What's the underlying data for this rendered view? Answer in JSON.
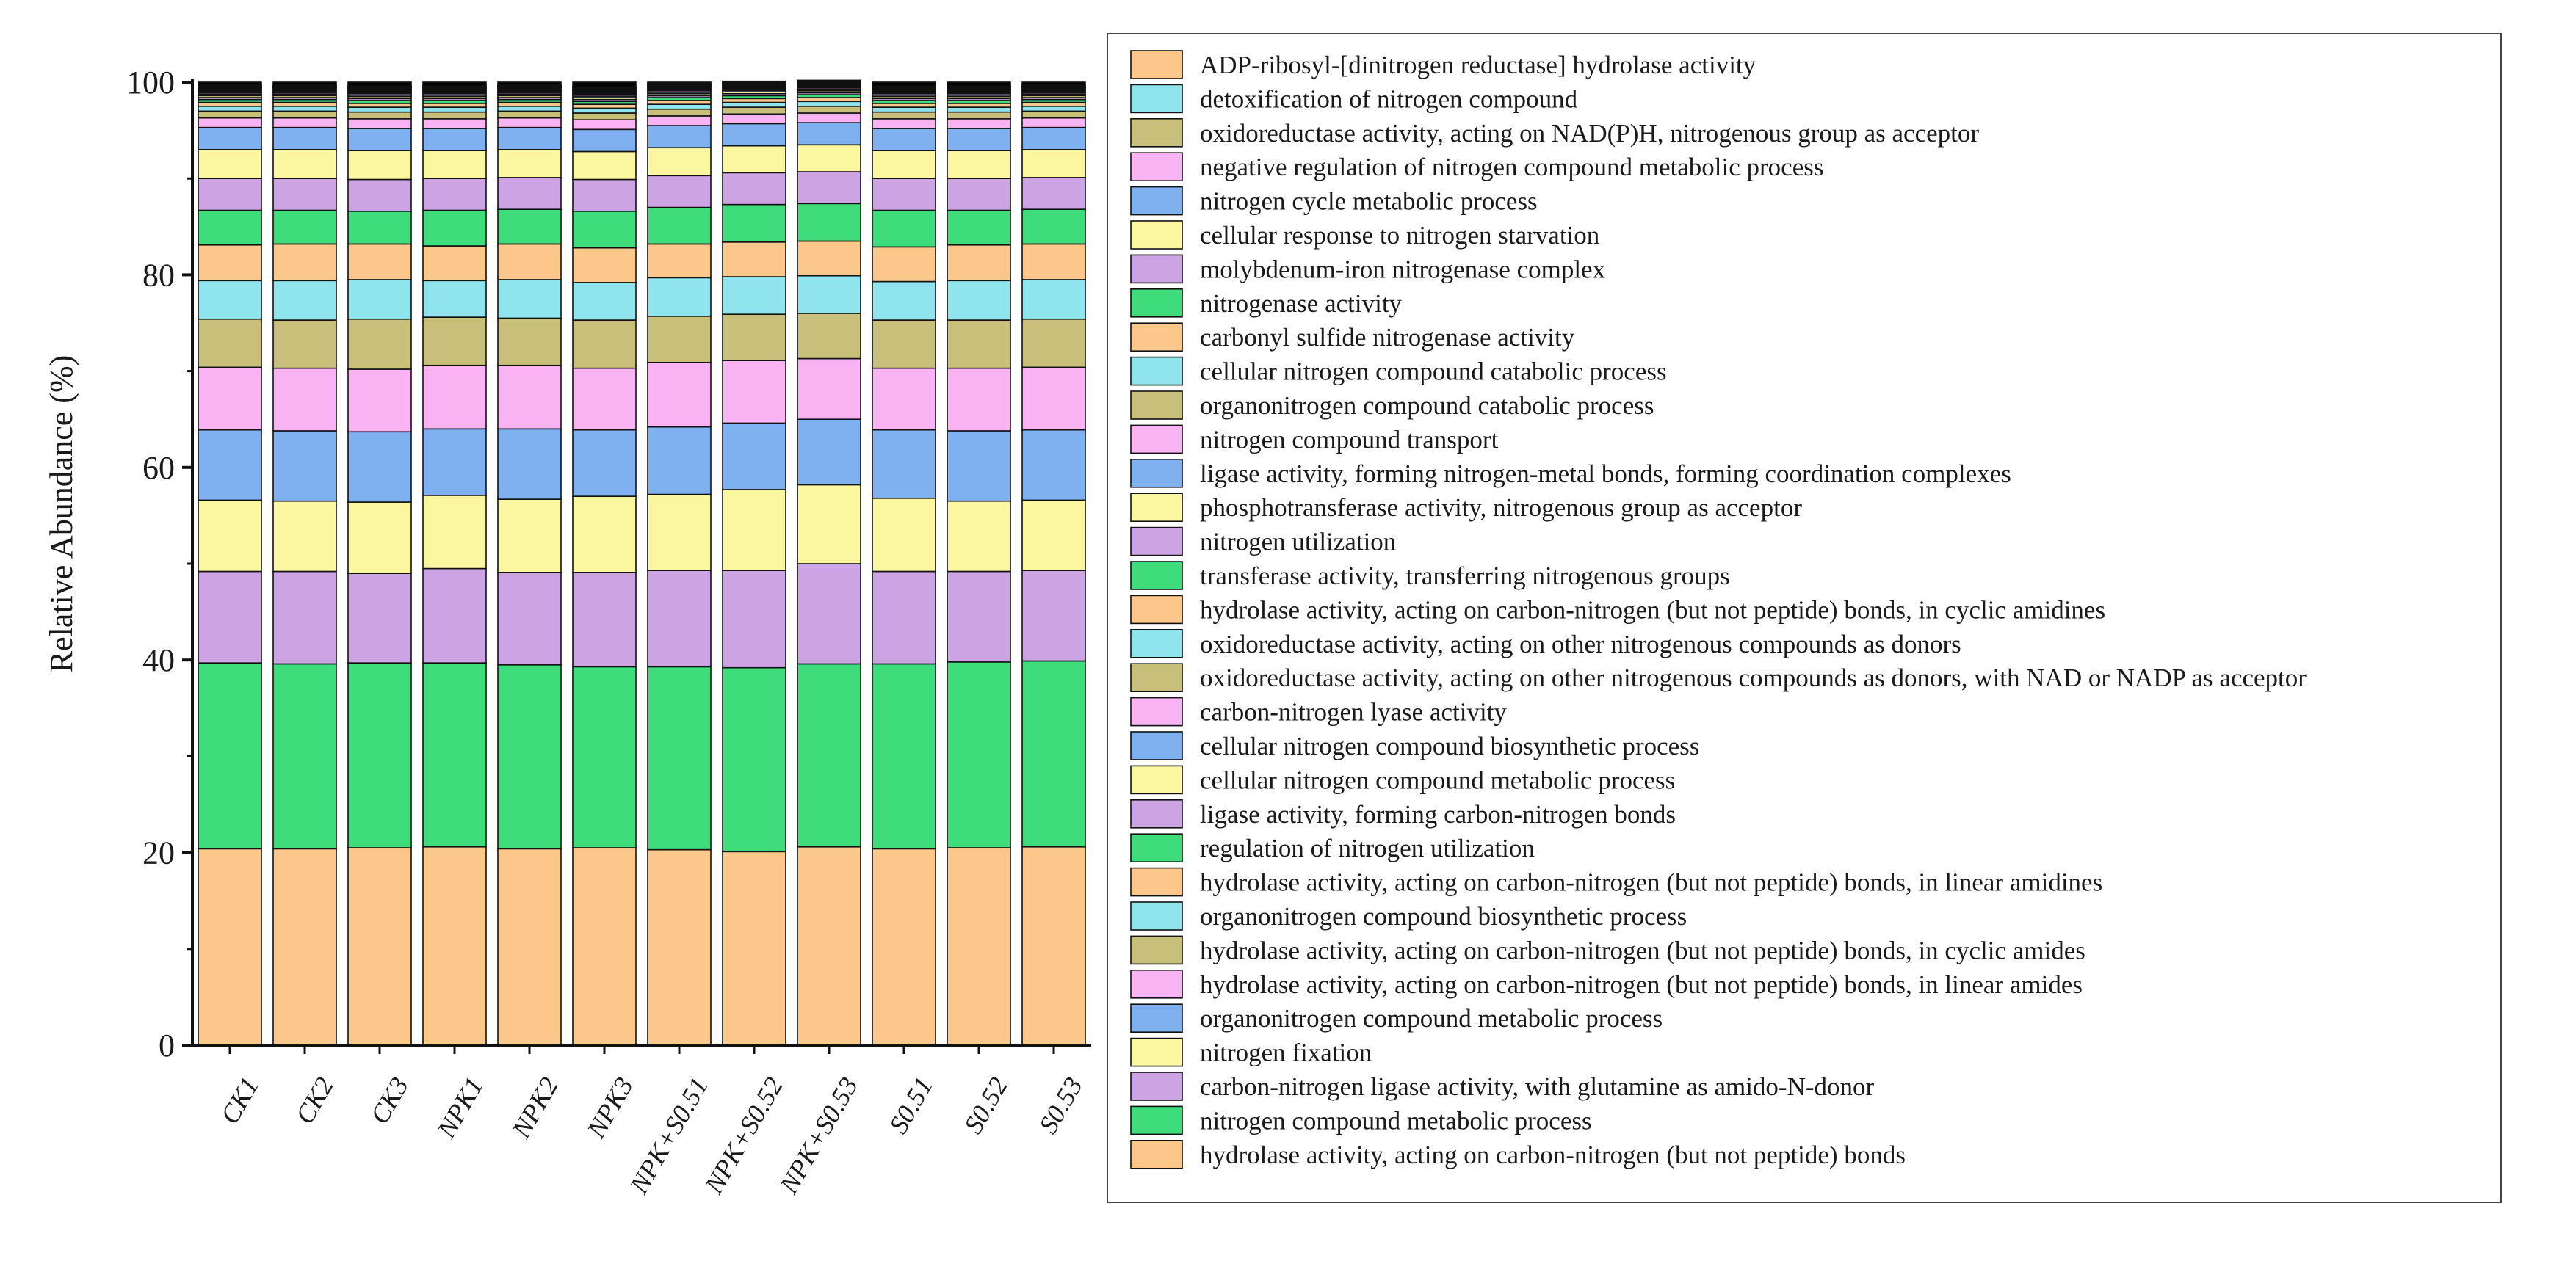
{
  "colors": {
    "orange": "#FBC78A",
    "green": "#3FDC7B",
    "purple": "#CDA4E3",
    "yellow": "#FBF6A0",
    "blue": "#7FB1F0",
    "pink": "#F9B2F2",
    "olive": "#C8C07A",
    "cyan": "#8FE4EE",
    "black": "#000000"
  },
  "chart_data": {
    "type": "bar",
    "stacked": true,
    "title": "",
    "xlabel": "",
    "ylabel": "Relative Abundance (%)",
    "ylim": [
      0,
      100
    ],
    "yticks": [
      0,
      20,
      40,
      60,
      80,
      100
    ],
    "legend_position": "right",
    "categories": [
      "CK1",
      "CK2",
      "CK3",
      "NPK1",
      "NPK2",
      "NPK3",
      "NPK+S0.51",
      "NPK+S0.52",
      "NPK+S0.53",
      "S0.51",
      "S0.52",
      "S0.53"
    ],
    "series": [
      {
        "name": "hydrolase activity, acting on carbon-nitrogen (but not peptide) bonds",
        "color": "orange",
        "values": [
          20.4,
          20.4,
          20.5,
          20.6,
          20.4,
          20.5,
          20.3,
          20.1,
          20.6,
          20.4,
          20.5,
          20.6
        ]
      },
      {
        "name": "nitrogen compound metabolic process",
        "color": "green",
        "values": [
          19.3,
          19.2,
          19.2,
          19.1,
          19.1,
          18.8,
          19.0,
          19.1,
          19.0,
          19.2,
          19.3,
          19.3
        ]
      },
      {
        "name": "carbon-nitrogen ligase activity, with glutamine as amido-N-donor",
        "color": "purple",
        "values": [
          9.5,
          9.6,
          9.3,
          9.8,
          9.6,
          9.8,
          10.0,
          10.1,
          10.4,
          9.6,
          9.4,
          9.4
        ]
      },
      {
        "name": "nitrogen fixation",
        "color": "yellow",
        "values": [
          7.4,
          7.3,
          7.4,
          7.6,
          7.6,
          7.9,
          7.9,
          8.4,
          8.2,
          7.6,
          7.3,
          7.3
        ]
      },
      {
        "name": "organonitrogen compound metabolic process",
        "color": "blue",
        "values": [
          7.3,
          7.3,
          7.3,
          6.9,
          7.3,
          6.9,
          7.0,
          6.9,
          6.8,
          7.1,
          7.3,
          7.3
        ]
      },
      {
        "name": "hydrolase activity, acting on carbon-nitrogen (but not peptide) bonds, in linear amides",
        "color": "pink",
        "values": [
          6.5,
          6.5,
          6.5,
          6.6,
          6.6,
          6.4,
          6.7,
          6.5,
          6.3,
          6.4,
          6.5,
          6.5
        ]
      },
      {
        "name": "hydrolase activity, acting on carbon-nitrogen (but not peptide) bonds, in cyclic amides",
        "color": "olive",
        "values": [
          5.0,
          5.0,
          5.2,
          5.0,
          4.9,
          5.0,
          4.8,
          4.8,
          4.7,
          5.0,
          5.0,
          5.0
        ]
      },
      {
        "name": "organonitrogen compound biosynthetic process",
        "color": "cyan",
        "values": [
          4.0,
          4.1,
          4.1,
          3.8,
          4.0,
          3.9,
          4.0,
          3.9,
          3.9,
          4.0,
          4.1,
          4.1
        ]
      },
      {
        "name": "hydrolase activity, acting on carbon-nitrogen (but not peptide) bonds, in linear amidines",
        "color": "orange",
        "values": [
          3.7,
          3.8,
          3.7,
          3.6,
          3.7,
          3.6,
          3.5,
          3.6,
          3.6,
          3.6,
          3.7,
          3.7
        ]
      },
      {
        "name": "regulation of nitrogen utilization",
        "color": "green",
        "values": [
          3.6,
          3.5,
          3.4,
          3.7,
          3.6,
          3.8,
          3.8,
          3.9,
          3.9,
          3.8,
          3.6,
          3.6
        ]
      },
      {
        "name": "ligase activity, forming carbon-nitrogen bonds",
        "color": "purple",
        "values": [
          3.3,
          3.3,
          3.3,
          3.3,
          3.3,
          3.3,
          3.3,
          3.3,
          3.3,
          3.3,
          3.3,
          3.3
        ]
      },
      {
        "name": "cellular nitrogen compound metabolic process",
        "color": "yellow",
        "values": [
          3.0,
          3.0,
          3.0,
          2.9,
          2.9,
          2.9,
          2.9,
          2.8,
          2.8,
          2.9,
          2.9,
          2.9
        ]
      },
      {
        "name": "cellular nitrogen compound biosynthetic process",
        "color": "blue",
        "values": [
          2.3,
          2.3,
          2.3,
          2.3,
          2.3,
          2.3,
          2.3,
          2.3,
          2.3,
          2.3,
          2.3,
          2.3
        ]
      },
      {
        "name": "carbon-nitrogen lyase activity",
        "color": "pink",
        "values": [
          1.0,
          1.0,
          1.0,
          1.0,
          1.0,
          1.0,
          1.0,
          1.0,
          1.0,
          1.0,
          1.0,
          1.0
        ]
      },
      {
        "name": "oxidoreductase activity, acting on other nitrogenous compounds as donors, with NAD or NADP as acceptor",
        "color": "olive",
        "values": [
          0.7,
          0.7,
          0.7,
          0.7,
          0.7,
          0.7,
          0.7,
          0.7,
          0.7,
          0.7,
          0.7,
          0.7
        ]
      },
      {
        "name": "oxidoreductase activity, acting on other nitrogenous compounds as donors",
        "color": "cyan",
        "values": [
          0.5,
          0.5,
          0.5,
          0.5,
          0.5,
          0.5,
          0.5,
          0.5,
          0.5,
          0.5,
          0.5,
          0.5
        ]
      },
      {
        "name": "hydrolase activity, acting on carbon-nitrogen (but not peptide) bonds, in cyclic amidines",
        "color": "orange",
        "values": [
          0.4,
          0.4,
          0.4,
          0.4,
          0.4,
          0.4,
          0.4,
          0.4,
          0.4,
          0.4,
          0.4,
          0.4
        ]
      },
      {
        "name": "transferase activity, transferring nitrogenous groups",
        "color": "green",
        "values": [
          0.3,
          0.3,
          0.3,
          0.3,
          0.3,
          0.3,
          0.3,
          0.3,
          0.3,
          0.3,
          0.3,
          0.3
        ]
      },
      {
        "name": "nitrogen utilization",
        "color": "purple",
        "values": [
          0.2,
          0.2,
          0.2,
          0.2,
          0.2,
          0.2,
          0.2,
          0.2,
          0.2,
          0.2,
          0.2,
          0.2
        ]
      },
      {
        "name": "phosphotransferase activity, nitrogenous group as acceptor",
        "color": "yellow",
        "values": [
          0.2,
          0.2,
          0.2,
          0.2,
          0.2,
          0.2,
          0.2,
          0.2,
          0.2,
          0.2,
          0.2,
          0.2
        ]
      },
      {
        "name": "ligase activity, forming nitrogen-metal bonds, forming coordination complexes",
        "color": "blue",
        "values": [
          0.15,
          0.15,
          0.15,
          0.15,
          0.15,
          0.15,
          0.15,
          0.15,
          0.15,
          0.15,
          0.15,
          0.15
        ]
      },
      {
        "name": "nitrogen compound transport",
        "color": "pink",
        "values": [
          0.15,
          0.15,
          0.15,
          0.15,
          0.15,
          0.15,
          0.15,
          0.15,
          0.15,
          0.15,
          0.15,
          0.15
        ]
      },
      {
        "name": "organonitrogen compound catabolic process",
        "color": "olive",
        "values": [
          0.1,
          0.1,
          0.1,
          0.1,
          0.1,
          0.1,
          0.1,
          0.1,
          0.1,
          0.1,
          0.1,
          0.1
        ]
      },
      {
        "name": "cellular nitrogen compound catabolic process",
        "color": "cyan",
        "values": [
          0.1,
          0.1,
          0.1,
          0.1,
          0.1,
          0.1,
          0.1,
          0.1,
          0.1,
          0.1,
          0.1,
          0.1
        ]
      },
      {
        "name": "carbonyl sulfide nitrogenase activity",
        "color": "orange",
        "values": [
          0.1,
          0.1,
          0.1,
          0.1,
          0.1,
          0.1,
          0.1,
          0.1,
          0.1,
          0.1,
          0.1,
          0.1
        ]
      },
      {
        "name": "nitrogenase activity",
        "color": "green",
        "values": [
          0.1,
          0.1,
          0.1,
          0.1,
          0.1,
          0.1,
          0.1,
          0.1,
          0.1,
          0.1,
          0.1,
          0.1
        ]
      },
      {
        "name": "molybdenum-iron nitrogenase complex",
        "color": "purple",
        "values": [
          0.1,
          0.1,
          0.1,
          0.1,
          0.1,
          0.1,
          0.1,
          0.1,
          0.1,
          0.1,
          0.1,
          0.1
        ]
      },
      {
        "name": "cellular response to nitrogen starvation",
        "color": "yellow",
        "values": [
          0.05,
          0.05,
          0.05,
          0.05,
          0.05,
          0.05,
          0.05,
          0.05,
          0.05,
          0.05,
          0.05,
          0.05
        ]
      },
      {
        "name": "nitrogen cycle metabolic process",
        "color": "blue",
        "values": [
          0.05,
          0.05,
          0.05,
          0.05,
          0.05,
          0.05,
          0.05,
          0.05,
          0.05,
          0.05,
          0.05,
          0.05
        ]
      },
      {
        "name": "negative regulation of nitrogen compound metabolic process",
        "color": "pink",
        "values": [
          0.05,
          0.05,
          0.05,
          0.05,
          0.05,
          0.05,
          0.05,
          0.05,
          0.05,
          0.05,
          0.05,
          0.05
        ]
      },
      {
        "name": "oxidoreductase activity, acting on NAD(P)H, nitrogenous group as acceptor",
        "color": "olive",
        "values": [
          0.05,
          0.05,
          0.05,
          0.05,
          0.05,
          0.05,
          0.05,
          0.05,
          0.05,
          0.05,
          0.05,
          0.05
        ]
      },
      {
        "name": "detoxification of nitrogen compound",
        "color": "cyan",
        "values": [
          0.05,
          0.05,
          0.05,
          0.05,
          0.05,
          0.05,
          0.05,
          0.05,
          0.05,
          0.05,
          0.05,
          0.05
        ]
      },
      {
        "name": "ADP-ribosyl-[dinitrogen reductase] hydrolase activity",
        "color": "orange",
        "values": [
          0.05,
          0.05,
          0.05,
          0.05,
          0.05,
          0.05,
          0.05,
          0.05,
          0.05,
          0.05,
          0.05,
          0.05
        ]
      }
    ],
    "remainder_color": "black"
  }
}
